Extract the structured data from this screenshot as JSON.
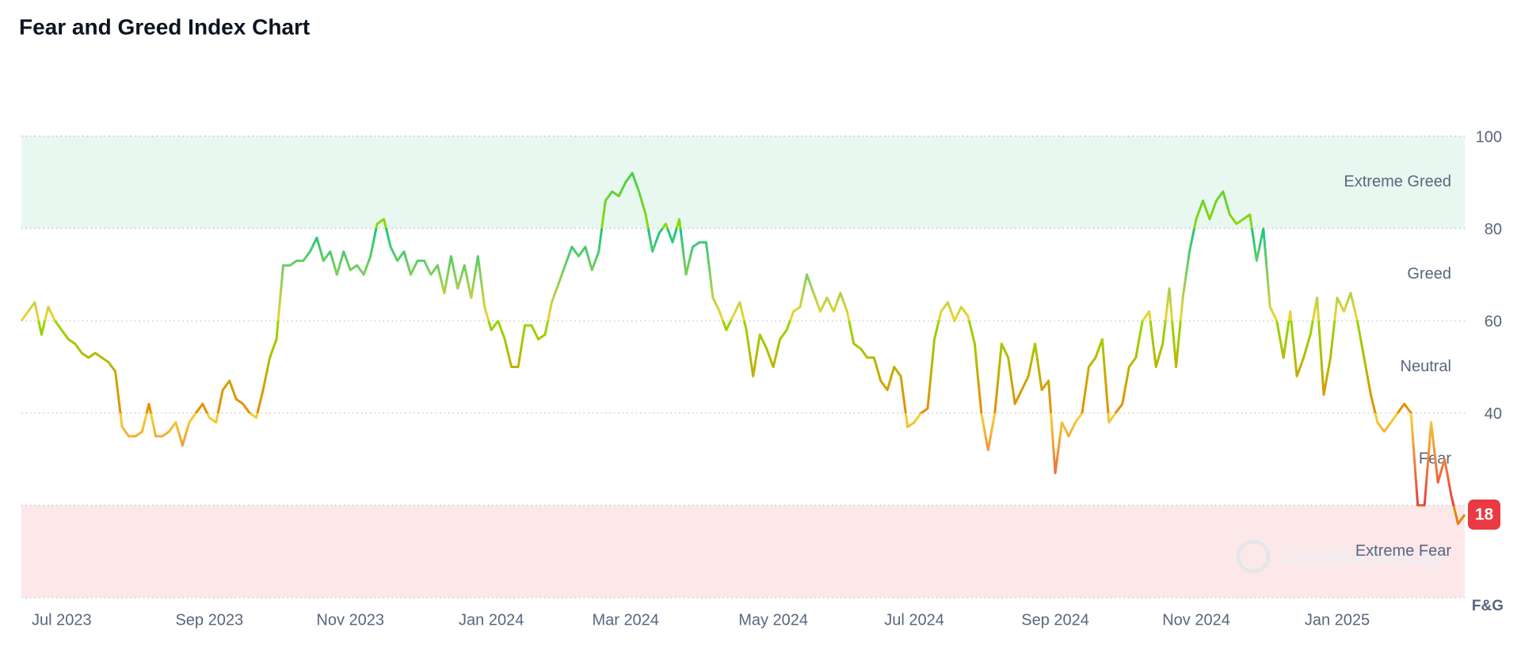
{
  "chart_data": {
    "type": "line",
    "title": "Fear and Greed Index Chart",
    "y_axis_label": "F&G",
    "watermark": "CoinMarketCap",
    "ylim": [
      0,
      100
    ],
    "yticks": [
      40,
      60,
      80,
      100
    ],
    "zones": [
      {
        "name": "Extreme Greed",
        "range": [
          80,
          100
        ],
        "color": "#16c784",
        "shade": "#e8f8f1"
      },
      {
        "name": "Greed",
        "range": [
          60,
          80
        ],
        "color": "#93d900"
      },
      {
        "name": "Neutral",
        "range": [
          40,
          60
        ],
        "color": "#f3d42f"
      },
      {
        "name": "Fear",
        "range": [
          20,
          40
        ],
        "color": "#ea8c00"
      },
      {
        "name": "Extreme Fear",
        "range": [
          0,
          20
        ],
        "color": "#ea3943",
        "shade": "#fde8e9"
      }
    ],
    "categories": [
      null,
      null,
      null,
      null,
      null,
      null,
      "Jul 2023",
      null,
      null,
      null,
      null,
      null,
      null,
      null,
      null,
      null,
      null,
      null,
      null,
      null,
      null,
      null,
      null,
      null,
      null,
      null,
      null,
      null,
      "Sep 2023",
      null,
      null,
      null,
      null,
      null,
      null,
      null,
      null,
      null,
      null,
      null,
      null,
      null,
      null,
      null,
      null,
      null,
      null,
      null,
      null,
      "Nov 2023",
      null,
      null,
      null,
      null,
      null,
      null,
      null,
      null,
      null,
      null,
      null,
      null,
      null,
      null,
      null,
      null,
      null,
      null,
      null,
      null,
      "Jan 2024",
      null,
      null,
      null,
      null,
      null,
      null,
      null,
      null,
      null,
      null,
      null,
      null,
      null,
      null,
      null,
      null,
      null,
      null,
      null,
      "Mar 2024",
      null,
      null,
      null,
      null,
      null,
      null,
      null,
      null,
      null,
      null,
      null,
      null,
      null,
      null,
      null,
      null,
      null,
      null,
      null,
      null,
      null,
      "May 2024",
      null,
      null,
      null,
      null,
      null,
      null,
      null,
      null,
      null,
      null,
      null,
      null,
      null,
      null,
      null,
      null,
      null,
      null,
      null,
      null,
      "Jul 2024",
      null,
      null,
      null,
      null,
      null,
      null,
      null,
      null,
      null,
      null,
      null,
      null,
      null,
      null,
      null,
      null,
      null,
      null,
      null,
      null,
      "Sep 2024",
      null,
      null,
      null,
      null,
      null,
      null,
      null,
      null,
      null,
      null,
      null,
      null,
      null,
      null,
      null,
      null,
      null,
      null,
      null,
      null,
      "Nov 2024",
      null,
      null,
      null,
      null,
      null,
      null,
      null,
      null,
      null,
      null,
      null,
      null,
      null,
      null,
      null,
      null,
      null,
      null,
      null,
      null,
      "Jan 2025",
      null,
      null,
      null,
      null,
      null,
      null,
      null,
      null,
      null,
      null,
      null,
      null,
      null,
      null,
      null,
      null,
      null,
      null,
      null
    ],
    "values": [
      60,
      62,
      64,
      57,
      63,
      60,
      58,
      56,
      55,
      53,
      52,
      53,
      52,
      51,
      49,
      37,
      35,
      35,
      36,
      42,
      35,
      35,
      36,
      38,
      33,
      38,
      40,
      42,
      39,
      38,
      45,
      47,
      43,
      42,
      40,
      39,
      45,
      52,
      56,
      72,
      72,
      73,
      73,
      75,
      78,
      73,
      75,
      70,
      75,
      71,
      72,
      70,
      74,
      81,
      82,
      76,
      73,
      75,
      70,
      73,
      73,
      70,
      72,
      66,
      74,
      67,
      72,
      65,
      74,
      63,
      58,
      60,
      56,
      50,
      50,
      59,
      59,
      56,
      57,
      64,
      68,
      72,
      76,
      74,
      76,
      71,
      75,
      86,
      88,
      87,
      90,
      92,
      88,
      83,
      75,
      79,
      81,
      77,
      82,
      70,
      76,
      77,
      77,
      65,
      62,
      58,
      61,
      64,
      58,
      48,
      57,
      54,
      50,
      56,
      58,
      62,
      63,
      70,
      66,
      62,
      65,
      62,
      66,
      62,
      55,
      54,
      52,
      52,
      47,
      45,
      50,
      48,
      37,
      38,
      40,
      41,
      56,
      62,
      64,
      60,
      63,
      61,
      55,
      40,
      32,
      40,
      55,
      52,
      42,
      45,
      48,
      55,
      45,
      47,
      27,
      38,
      35,
      38,
      40,
      50,
      52,
      56,
      38,
      40,
      42,
      50,
      52,
      60,
      62,
      50,
      55,
      67,
      50,
      65,
      75,
      82,
      86,
      82,
      86,
      88,
      83,
      81,
      82,
      83,
      73,
      80,
      63,
      60,
      52,
      62,
      48,
      52,
      57,
      65,
      44,
      52,
      65,
      62,
      66,
      60,
      52,
      44,
      38,
      36,
      38,
      40,
      42,
      40,
      20,
      20,
      38,
      25,
      30,
      22,
      16,
      18
    ]
  }
}
